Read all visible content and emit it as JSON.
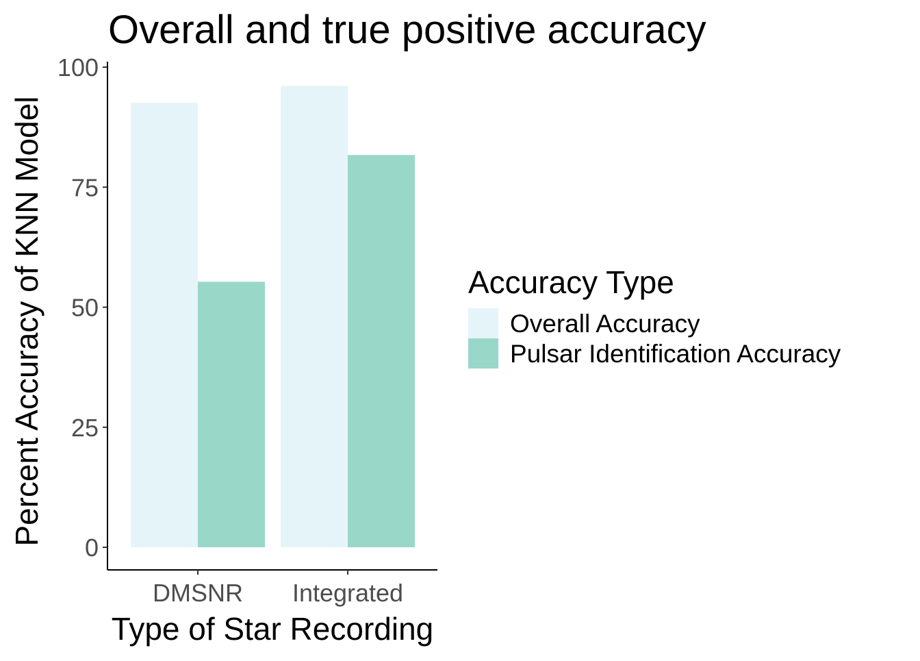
{
  "chart_data": {
    "type": "bar",
    "title": "Overall and true positive accuracy",
    "xlabel": "Type of Star Recording",
    "ylabel": "Percent Accuracy of KNN Model",
    "categories": [
      "DMSNR",
      "Integrated"
    ],
    "series": [
      {
        "name": "Overall Accuracy",
        "values": [
          92.6,
          96.1
        ],
        "color": "#e5f4f9"
      },
      {
        "name": "Pulsar Identification Accuracy",
        "values": [
          55.3,
          81.7
        ],
        "color": "#99d8c9"
      }
    ],
    "ylim": [
      0,
      100
    ],
    "yticks": [
      0,
      25,
      50,
      75,
      100
    ],
    "grid": false,
    "legend": {
      "title": "Accuracy Type",
      "position": "right"
    }
  }
}
